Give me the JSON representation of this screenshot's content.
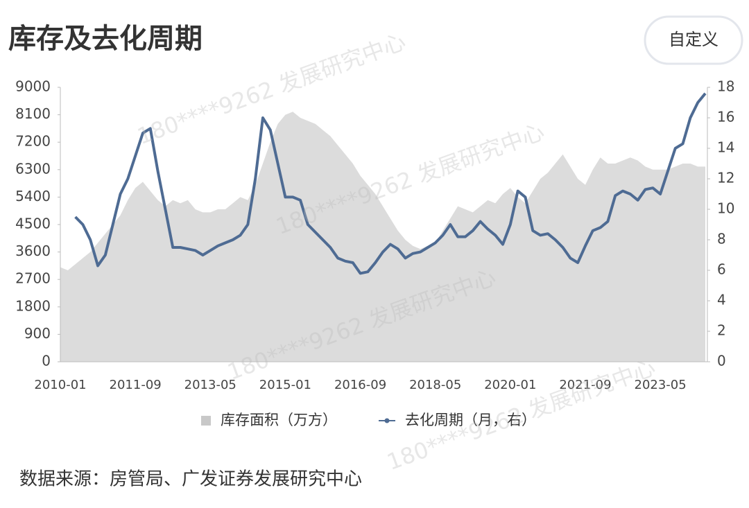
{
  "page": {
    "button": "自定义",
    "source": "数据来源：房管局、广发证券发展研究中心",
    "watermark": "180****9262 发展研究中心"
  },
  "chart_data": {
    "type": "combo",
    "title": "库存及去化周期",
    "categories": [
      "2010-01",
      null,
      null,
      null,
      null,
      null,
      null,
      null,
      null,
      null,
      "2011-09",
      null,
      null,
      null,
      null,
      null,
      null,
      null,
      null,
      null,
      "2013-05",
      null,
      null,
      null,
      null,
      null,
      null,
      null,
      null,
      null,
      "2015-01",
      null,
      null,
      null,
      null,
      null,
      null,
      null,
      null,
      null,
      "2016-09",
      null,
      null,
      null,
      null,
      null,
      null,
      null,
      null,
      null,
      "2018-05",
      null,
      null,
      null,
      null,
      null,
      null,
      null,
      null,
      null,
      "2020-01",
      null,
      null,
      null,
      null,
      null,
      null,
      null,
      null,
      null,
      "2021-09",
      null,
      null,
      null,
      null,
      null,
      null,
      null,
      null,
      null,
      "2023-05",
      null,
      null,
      null,
      null,
      null,
      null
    ],
    "series": [
      {
        "name": "库存面积（万方）",
        "type": "area",
        "color": "#dcdcdc",
        "values": [
          3100,
          3000,
          3200,
          3400,
          3600,
          3900,
          4200,
          4500,
          4800,
          5300,
          5700,
          5900,
          5600,
          5300,
          5100,
          5300,
          5200,
          5300,
          5000,
          4900,
          4900,
          5000,
          5000,
          5200,
          5400,
          5300,
          5800,
          6500,
          7200,
          7800,
          8100,
          8200,
          8000,
          7900,
          7800,
          7600,
          7400,
          7100,
          6800,
          6500,
          6100,
          5800,
          5500,
          5100,
          4700,
          4300,
          4000,
          3800,
          3700,
          3800,
          3900,
          4300,
          4700,
          5100,
          5000,
          4900,
          5100,
          5300,
          5200,
          5500,
          5700,
          5400,
          5200,
          5600,
          6000,
          6200,
          6500,
          6800,
          6400,
          6000,
          5800,
          6300,
          6700,
          6500,
          6500,
          6600,
          6700,
          6600,
          6400,
          6300,
          6300,
          6300,
          6400,
          6500,
          6500,
          6400,
          6400
        ]
      },
      {
        "name": "去化周期（月，右）",
        "type": "line",
        "axis": "y2",
        "color": "#4e6b93",
        "values": [
          null,
          null,
          9.5,
          9.0,
          8.0,
          6.3,
          7.0,
          9.0,
          11.0,
          12.0,
          13.5,
          15.0,
          15.3,
          12.5,
          10.0,
          7.5,
          7.5,
          7.4,
          7.3,
          7.0,
          7.3,
          7.6,
          7.8,
          8.0,
          8.3,
          9.0,
          12.0,
          16.0,
          15.2,
          13.0,
          10.8,
          10.8,
          10.6,
          9.0,
          8.5,
          8.0,
          7.5,
          6.8,
          6.6,
          6.5,
          5.8,
          5.9,
          6.5,
          7.2,
          7.7,
          7.4,
          6.8,
          7.1,
          7.2,
          7.5,
          7.8,
          8.3,
          9.0,
          8.2,
          8.2,
          8.6,
          9.2,
          8.7,
          8.3,
          7.7,
          9.0,
          11.2,
          10.8,
          8.6,
          8.3,
          8.4,
          8.0,
          7.5,
          6.8,
          6.5,
          7.6,
          8.6,
          8.8,
          9.2,
          10.9,
          11.2,
          11.0,
          10.6,
          11.3,
          11.4,
          11.0,
          12.5,
          14.0,
          14.3,
          16.0,
          17.0,
          17.6
        ]
      }
    ],
    "ylim": [
      0,
      9000
    ],
    "yticks": [
      0,
      900,
      1800,
      2700,
      3600,
      4500,
      5400,
      6300,
      7200,
      8100,
      9000
    ],
    "y2lim": [
      0,
      18
    ],
    "y2ticks": [
      0,
      2,
      4,
      6,
      8,
      10,
      12,
      14,
      16,
      18
    ]
  }
}
